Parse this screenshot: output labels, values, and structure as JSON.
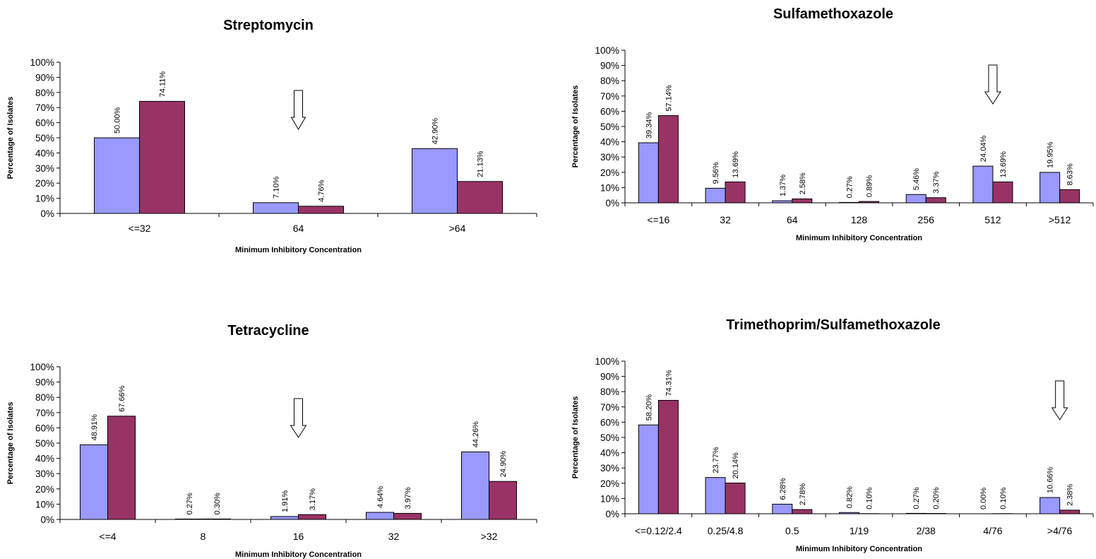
{
  "colors": {
    "series_a": "#9999ff",
    "series_b": "#993366",
    "axis": "#000000",
    "arrow_fill": "#ffffff"
  },
  "chart_data": [
    {
      "type": "bar",
      "title": "Streptomycin",
      "xlabel": "Minimum Inhibitory Concentration",
      "ylabel": "Percentage of Isolates",
      "ylim": [
        0,
        100
      ],
      "ytick_labels": [
        "0%",
        "10%",
        "20%",
        "30%",
        "40%",
        "50%",
        "60%",
        "70%",
        "80%",
        "90%",
        "100%"
      ],
      "categories": [
        "<=32",
        "64",
        ">64"
      ],
      "series": [
        {
          "values": [
            50.0,
            7.1,
            42.9
          ],
          "labels": [
            "50.00%",
            "7.10%",
            "42.90%"
          ]
        },
        {
          "values": [
            74.11,
            4.76,
            21.13
          ],
          "labels": [
            "74.11%",
            "4.76%",
            "21.13%"
          ]
        }
      ],
      "arrow_category": "64",
      "grid": false,
      "legend": "none"
    },
    {
      "type": "bar",
      "title": "Sulfamethoxazole",
      "xlabel": "Minimum Inhibitory Concentration",
      "ylabel": "Percentage of Isolates",
      "ylim": [
        0,
        100
      ],
      "ytick_labels": [
        "0%",
        "10%",
        "20%",
        "30%",
        "40%",
        "50%",
        "60%",
        "70%",
        "80%",
        "90%",
        "100%"
      ],
      "categories": [
        "<=16",
        "32",
        "64",
        "128",
        "256",
        "512",
        ">512"
      ],
      "series": [
        {
          "values": [
            39.34,
            9.56,
            1.37,
            0.27,
            5.46,
            24.04,
            19.95
          ],
          "labels": [
            "39.34%",
            "9.56%",
            "1.37%",
            "0.27%",
            "5.46%",
            "24.04%",
            "19.95%"
          ]
        },
        {
          "values": [
            57.14,
            13.69,
            2.58,
            0.89,
            3.37,
            13.69,
            8.63
          ],
          "labels": [
            "57.14%",
            "13.69%",
            "2.58%",
            "0.89%",
            "3.37%",
            "13.69%",
            "8.63%"
          ]
        }
      ],
      "arrow_category": "512",
      "grid": false,
      "legend": "none"
    },
    {
      "type": "bar",
      "title": "Tetracycline",
      "xlabel": "Minimum Inhibitory Concentration",
      "ylabel": "Percentage of Isolates",
      "ylim": [
        0,
        100
      ],
      "ytick_labels": [
        "0%",
        "10%",
        "20%",
        "30%",
        "40%",
        "50%",
        "60%",
        "70%",
        "80%",
        "90%",
        "100%"
      ],
      "categories": [
        "<=4",
        "8",
        "16",
        "32",
        ">32"
      ],
      "series": [
        {
          "values": [
            48.91,
            0.27,
            1.91,
            4.64,
            44.26
          ],
          "labels": [
            "48.91%",
            "0.27%",
            "1.91%",
            "4.64%",
            "44.26%"
          ]
        },
        {
          "values": [
            67.66,
            0.3,
            3.17,
            3.97,
            24.9
          ],
          "labels": [
            "67.66%",
            "0.30%",
            "3.17%",
            "3.97%",
            "24.90%"
          ]
        }
      ],
      "arrow_category": "16",
      "grid": false,
      "legend": "none"
    },
    {
      "type": "bar",
      "title": "Trimethoprim/Sulfamethoxazole",
      "xlabel": "Minimum Inhibitory Concentration",
      "ylabel": "Percentage of Isolates",
      "ylim": [
        0,
        100
      ],
      "ytick_labels": [
        "0%",
        "10%",
        "20%",
        "30%",
        "40%",
        "50%",
        "60%",
        "70%",
        "80%",
        "90%",
        "100%"
      ],
      "categories": [
        "<=0.12/2.4",
        "0.25/4.8",
        "0.5",
        "1/19",
        "2/38",
        "4/76",
        ">4/76"
      ],
      "series": [
        {
          "values": [
            58.2,
            23.77,
            6.28,
            0.82,
            0.27,
            0.0,
            10.66
          ],
          "labels": [
            "58.20%",
            "23.77%",
            "6.28%",
            "0.82%",
            "0.27%",
            "0.00%",
            "10.66%"
          ]
        },
        {
          "values": [
            74.31,
            20.14,
            2.78,
            0.1,
            0.2,
            0.1,
            2.38
          ],
          "labels": [
            "74.31%",
            "20.14%",
            "2.78%",
            "0.10%",
            "0.20%",
            "0.10%",
            "2.38%"
          ]
        }
      ],
      "arrow_category": ">4/76",
      "grid": false,
      "legend": "none"
    }
  ]
}
